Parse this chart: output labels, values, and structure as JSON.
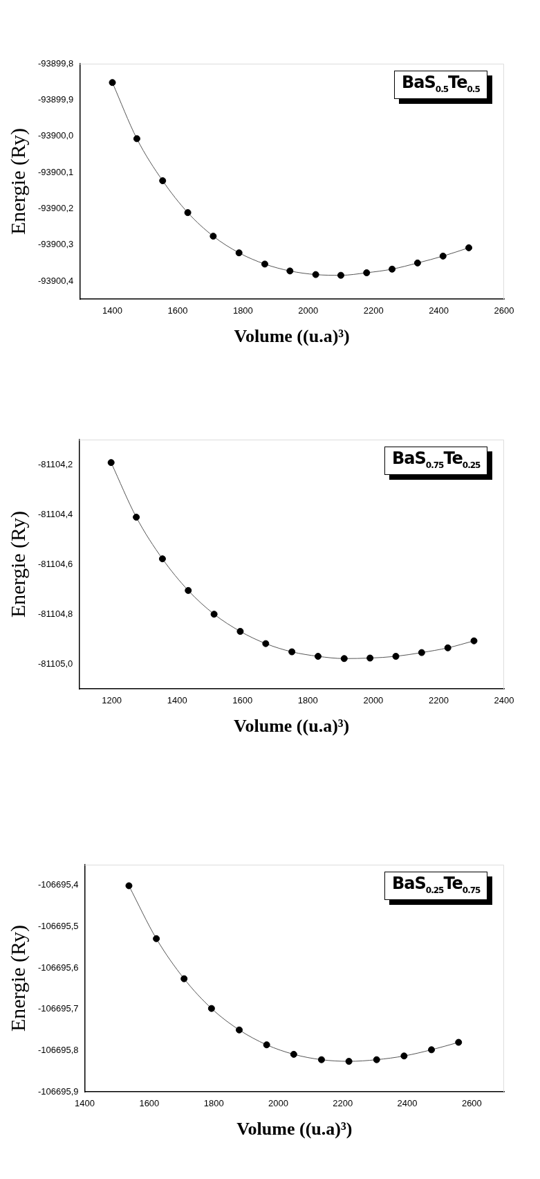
{
  "chart_data": [
    {
      "type": "line",
      "xlabel": "Volume ((u.a)³)",
      "ylabel": "Energie (Ry)",
      "legend": "top right",
      "marker": "circle",
      "grid": false,
      "x": [
        1400,
        1475,
        1554,
        1631,
        1709,
        1788,
        1867,
        1944,
        2023,
        2100,
        2179,
        2257,
        2335,
        2413,
        2492
      ],
      "series": [
        {
          "name": "BaS$_{0.5}$Te$_{0.5}$",
          "color": "#000000",
          "values": [
            -93899.852,
            -93900.007,
            -93900.123,
            -93900.211,
            -93900.276,
            -93900.322,
            -93900.353,
            -93900.372,
            -93900.382,
            -93900.384,
            -93900.377,
            -93900.367,
            -93900.35,
            -93900.331,
            -93900.308
          ]
        }
      ],
      "xlim": [
        1300,
        2600
      ],
      "xticks": [
        1400,
        1600,
        1800,
        2000,
        2200,
        2400,
        2600
      ],
      "ylim": [
        -93900.45,
        -93899.8
      ],
      "yticks": [
        {
          "value": -93900.4,
          "label": "-93900,4"
        },
        {
          "value": -93900.3,
          "label": "-93900,3"
        },
        {
          "value": -93900.2,
          "label": "-93900,2"
        },
        {
          "value": -93900.1,
          "label": "-93900,1"
        },
        {
          "value": -93900.0,
          "label": "-93900,0"
        },
        {
          "value": -93899.9,
          "label": "-93899,9"
        },
        {
          "value": -93899.8,
          "label": "-93899,8"
        }
      ]
    },
    {
      "type": "line",
      "xlabel": "Volume ((u.a)³)",
      "ylabel": "Energie (Ry)",
      "legend": "top right",
      "marker": "circle",
      "grid": false,
      "x": [
        1198,
        1275,
        1355,
        1434,
        1513,
        1593,
        1671,
        1751,
        1831,
        1911,
        1990,
        2069,
        2148,
        2228,
        2308
      ],
      "series": [
        {
          "name": "BaS$_{0.75}$Te$_{0.25}$",
          "color": "#000000",
          "values": [
            -81104.192,
            -81104.411,
            -81104.578,
            -81104.705,
            -81104.8,
            -81104.869,
            -81104.918,
            -81104.951,
            -81104.969,
            -81104.978,
            -81104.976,
            -81104.969,
            -81104.954,
            -81104.935,
            -81104.907
          ]
        }
      ],
      "xlim": [
        1100,
        2400
      ],
      "xticks": [
        1200,
        1400,
        1600,
        1800,
        2000,
        2200,
        2400
      ],
      "ylim": [
        -81105.1,
        -81104.1
      ],
      "yticks": [
        {
          "value": -81105.0,
          "label": "-81105,0"
        },
        {
          "value": -81104.8,
          "label": "-81104,8"
        },
        {
          "value": -81104.6,
          "label": "-81104,6"
        },
        {
          "value": -81104.4,
          "label": "-81104,4"
        },
        {
          "value": -81104.2,
          "label": "-81104,2"
        }
      ]
    },
    {
      "type": "line",
      "xlabel": "Volume ((u.a)³)",
      "ylabel": "Energie (Ry)",
      "legend": "top right",
      "marker": "circle",
      "grid": false,
      "x": [
        1537,
        1622,
        1708,
        1793,
        1879,
        1964,
        2048,
        2134,
        2219,
        2305,
        2390,
        2475,
        2559
      ],
      "series": [
        {
          "name": "BaS$_{0.25}$Te$_{0.75}$",
          "color": "#000000",
          "values": [
            -106695.401,
            -106695.529,
            -106695.626,
            -106695.698,
            -106695.75,
            -106695.786,
            -106695.809,
            -106695.822,
            -106695.826,
            -106695.822,
            -106695.813,
            -106695.798,
            -106695.78
          ]
        }
      ],
      "xlim": [
        1400,
        2700
      ],
      "xticks": [
        1400,
        1600,
        1800,
        2000,
        2200,
        2400,
        2600
      ],
      "ylim": [
        -106695.9,
        -106695.35
      ],
      "yticks": [
        {
          "value": -106695.9,
          "label": "-106695,9"
        },
        {
          "value": -106695.8,
          "label": "-106695,8"
        },
        {
          "value": -106695.7,
          "label": "-106695,7"
        },
        {
          "value": -106695.6,
          "label": "-106695,6"
        },
        {
          "value": -106695.5,
          "label": "-106695,5"
        },
        {
          "value": -106695.4,
          "label": "-106695,4"
        }
      ]
    }
  ]
}
